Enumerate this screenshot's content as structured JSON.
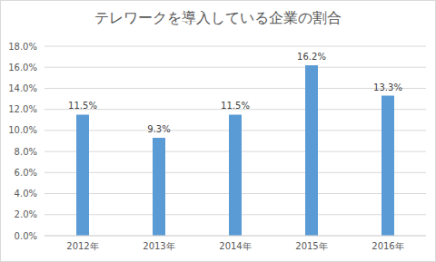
{
  "chart_data": {
    "type": "bar",
    "title": "テレワークを導入している企業の割合",
    "categories": [
      "2012年",
      "2013年",
      "2014年",
      "2015年",
      "2016年"
    ],
    "values": [
      11.5,
      9.3,
      11.5,
      16.2,
      13.3
    ],
    "value_labels": [
      "11.5%",
      "9.3%",
      "11.5%",
      "16.2%",
      "13.3%"
    ],
    "color": "#5b9bd5",
    "ylim": [
      0,
      18
    ],
    "yticks": [
      {
        "value": 0,
        "label": "0.0%"
      },
      {
        "value": 2,
        "label": "2.0%"
      },
      {
        "value": 4,
        "label": "4.0%"
      },
      {
        "value": 6,
        "label": "6.0%"
      },
      {
        "value": 8,
        "label": "8.0%"
      },
      {
        "value": 10,
        "label": "10.0%"
      },
      {
        "value": 12,
        "label": "12.0%"
      },
      {
        "value": 14,
        "label": "14.0%"
      },
      {
        "value": 16,
        "label": "16.0%"
      },
      {
        "value": 18,
        "label": "18.0%"
      }
    ],
    "grid": true,
    "data_labels": true
  }
}
